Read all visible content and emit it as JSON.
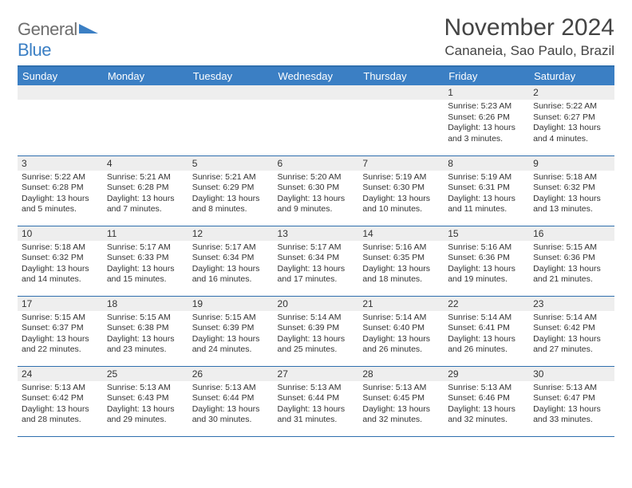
{
  "brand": {
    "word1": "General",
    "word2": "Blue"
  },
  "title": "November 2024",
  "location": "Cananeia, Sao Paulo, Brazil",
  "colors": {
    "header_bg": "#3b7fc4",
    "header_border": "#2f6fae",
    "daynum_bg": "#eeeeee",
    "text": "#333333",
    "brand_gray": "#6e6e6e",
    "brand_blue": "#3b7fc4",
    "page_bg": "#ffffff"
  },
  "fonts": {
    "title_pt": 30,
    "location_pt": 17,
    "dow_pt": 13,
    "daynum_pt": 12,
    "body_pt": 10.5
  },
  "days_of_week": [
    "Sunday",
    "Monday",
    "Tuesday",
    "Wednesday",
    "Thursday",
    "Friday",
    "Saturday"
  ],
  "weeks": [
    [
      null,
      null,
      null,
      null,
      null,
      {
        "n": "1",
        "sunrise": "5:23 AM",
        "sunset": "6:26 PM",
        "daylight": "13 hours and 3 minutes."
      },
      {
        "n": "2",
        "sunrise": "5:22 AM",
        "sunset": "6:27 PM",
        "daylight": "13 hours and 4 minutes."
      }
    ],
    [
      {
        "n": "3",
        "sunrise": "5:22 AM",
        "sunset": "6:28 PM",
        "daylight": "13 hours and 5 minutes."
      },
      {
        "n": "4",
        "sunrise": "5:21 AM",
        "sunset": "6:28 PM",
        "daylight": "13 hours and 7 minutes."
      },
      {
        "n": "5",
        "sunrise": "5:21 AM",
        "sunset": "6:29 PM",
        "daylight": "13 hours and 8 minutes."
      },
      {
        "n": "6",
        "sunrise": "5:20 AM",
        "sunset": "6:30 PM",
        "daylight": "13 hours and 9 minutes."
      },
      {
        "n": "7",
        "sunrise": "5:19 AM",
        "sunset": "6:30 PM",
        "daylight": "13 hours and 10 minutes."
      },
      {
        "n": "8",
        "sunrise": "5:19 AM",
        "sunset": "6:31 PM",
        "daylight": "13 hours and 11 minutes."
      },
      {
        "n": "9",
        "sunrise": "5:18 AM",
        "sunset": "6:32 PM",
        "daylight": "13 hours and 13 minutes."
      }
    ],
    [
      {
        "n": "10",
        "sunrise": "5:18 AM",
        "sunset": "6:32 PM",
        "daylight": "13 hours and 14 minutes."
      },
      {
        "n": "11",
        "sunrise": "5:17 AM",
        "sunset": "6:33 PM",
        "daylight": "13 hours and 15 minutes."
      },
      {
        "n": "12",
        "sunrise": "5:17 AM",
        "sunset": "6:34 PM",
        "daylight": "13 hours and 16 minutes."
      },
      {
        "n": "13",
        "sunrise": "5:17 AM",
        "sunset": "6:34 PM",
        "daylight": "13 hours and 17 minutes."
      },
      {
        "n": "14",
        "sunrise": "5:16 AM",
        "sunset": "6:35 PM",
        "daylight": "13 hours and 18 minutes."
      },
      {
        "n": "15",
        "sunrise": "5:16 AM",
        "sunset": "6:36 PM",
        "daylight": "13 hours and 19 minutes."
      },
      {
        "n": "16",
        "sunrise": "5:15 AM",
        "sunset": "6:36 PM",
        "daylight": "13 hours and 21 minutes."
      }
    ],
    [
      {
        "n": "17",
        "sunrise": "5:15 AM",
        "sunset": "6:37 PM",
        "daylight": "13 hours and 22 minutes."
      },
      {
        "n": "18",
        "sunrise": "5:15 AM",
        "sunset": "6:38 PM",
        "daylight": "13 hours and 23 minutes."
      },
      {
        "n": "19",
        "sunrise": "5:15 AM",
        "sunset": "6:39 PM",
        "daylight": "13 hours and 24 minutes."
      },
      {
        "n": "20",
        "sunrise": "5:14 AM",
        "sunset": "6:39 PM",
        "daylight": "13 hours and 25 minutes."
      },
      {
        "n": "21",
        "sunrise": "5:14 AM",
        "sunset": "6:40 PM",
        "daylight": "13 hours and 26 minutes."
      },
      {
        "n": "22",
        "sunrise": "5:14 AM",
        "sunset": "6:41 PM",
        "daylight": "13 hours and 26 minutes."
      },
      {
        "n": "23",
        "sunrise": "5:14 AM",
        "sunset": "6:42 PM",
        "daylight": "13 hours and 27 minutes."
      }
    ],
    [
      {
        "n": "24",
        "sunrise": "5:13 AM",
        "sunset": "6:42 PM",
        "daylight": "13 hours and 28 minutes."
      },
      {
        "n": "25",
        "sunrise": "5:13 AM",
        "sunset": "6:43 PM",
        "daylight": "13 hours and 29 minutes."
      },
      {
        "n": "26",
        "sunrise": "5:13 AM",
        "sunset": "6:44 PM",
        "daylight": "13 hours and 30 minutes."
      },
      {
        "n": "27",
        "sunrise": "5:13 AM",
        "sunset": "6:44 PM",
        "daylight": "13 hours and 31 minutes."
      },
      {
        "n": "28",
        "sunrise": "5:13 AM",
        "sunset": "6:45 PM",
        "daylight": "13 hours and 32 minutes."
      },
      {
        "n": "29",
        "sunrise": "5:13 AM",
        "sunset": "6:46 PM",
        "daylight": "13 hours and 32 minutes."
      },
      {
        "n": "30",
        "sunrise": "5:13 AM",
        "sunset": "6:47 PM",
        "daylight": "13 hours and 33 minutes."
      }
    ]
  ],
  "labels": {
    "sunrise": "Sunrise:",
    "sunset": "Sunset:",
    "daylight": "Daylight:"
  }
}
